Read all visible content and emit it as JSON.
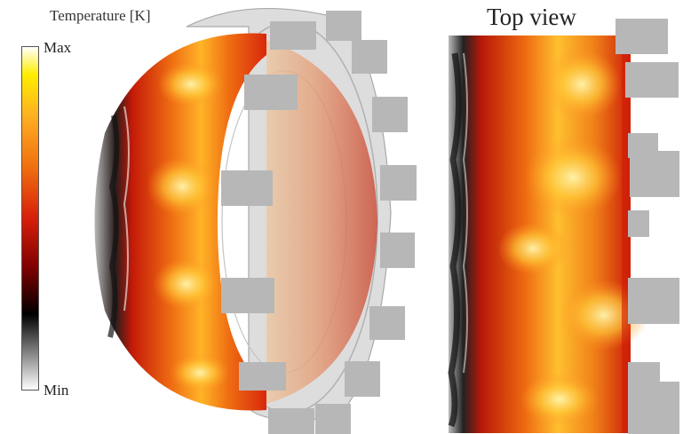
{
  "legend": {
    "title": "Temperature [K]",
    "max_label": "Max",
    "min_label": "Min",
    "colormap": [
      "#ffffff",
      "#8c8c8c",
      "#000000",
      "#7a0000",
      "#d71e0a",
      "#f07010",
      "#ffb020",
      "#ffee00",
      "#ffffff"
    ]
  },
  "panels": {
    "top_view_title": "Top view"
  },
  "colors": {
    "flame_dark_red": "#c41a08",
    "flame_orange": "#ef6e12",
    "flame_yellow": "#ffd23a",
    "char_black": "#1a1a1a",
    "casing_gray": "#d4d4d4",
    "mask_gray": "#b7b7b7"
  }
}
